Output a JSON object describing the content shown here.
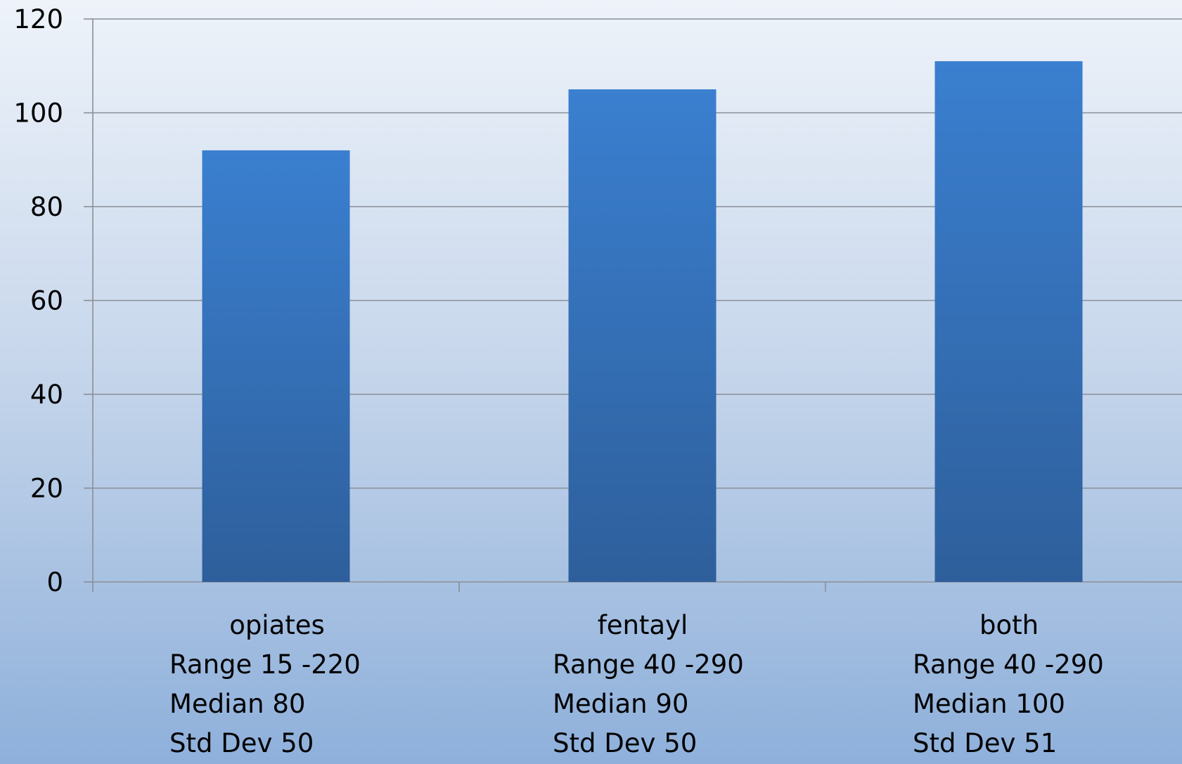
{
  "chart_data": {
    "type": "bar",
    "title": "",
    "xlabel": "",
    "ylabel": "",
    "ylim": [
      0,
      120
    ],
    "yticks": [
      0,
      20,
      40,
      60,
      80,
      100,
      120
    ],
    "grid": true,
    "categories": [
      "opiates",
      "fentayl",
      "both"
    ],
    "values": [
      92,
      105,
      111
    ],
    "category_stats": [
      {
        "range": "Range 15 -220",
        "median": "Median 80",
        "std": "Std Dev 50"
      },
      {
        "range": "Range 40 -290",
        "median": "Median 90",
        "std": "Std Dev 50"
      },
      {
        "range": "Range 40 -290",
        "median": "Median 100",
        "std": "Std Dev 51"
      }
    ],
    "bar_color_top": "#3a7fd0",
    "bar_color_bottom": "#2e5f9b"
  }
}
